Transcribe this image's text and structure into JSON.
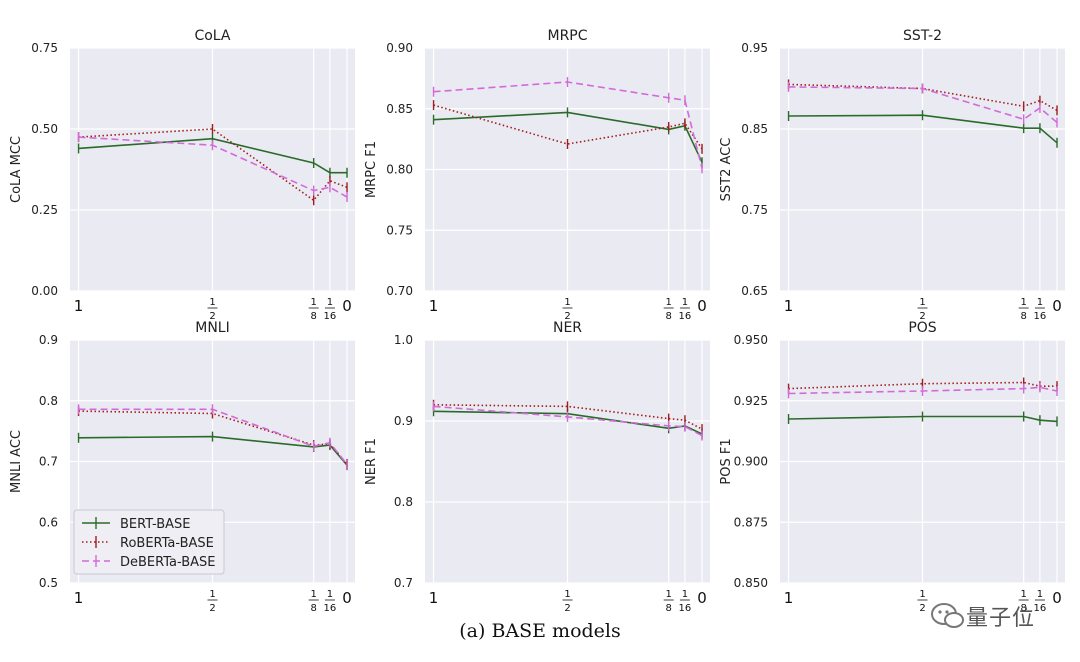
{
  "caption": "(a) BASE models",
  "watermark": "量子位",
  "legend": {
    "items": [
      {
        "label": "BERT-BASE",
        "color": "#2a6b2a",
        "style": "solid"
      },
      {
        "label": "RoBERTa-BASE",
        "color": "#a11d1d",
        "style": "dotted"
      },
      {
        "label": "DeBERTa-BASE",
        "color": "#d36ad8",
        "style": "dashed"
      }
    ]
  },
  "chart_data": [
    {
      "type": "line",
      "title": "CoLA",
      "ylabel": "CoLA MCC",
      "ylim": [
        0.0,
        0.75
      ],
      "yticks": [
        "0.00",
        "0.25",
        "0.50",
        "0.75"
      ],
      "xtick_labels": [
        {
          "x": 1,
          "label": "1"
        },
        {
          "x": 0.5,
          "num": "1",
          "den": "2"
        },
        {
          "x": 0.125,
          "num": "1",
          "den": "8"
        },
        {
          "x": 0.0625,
          "num": "1",
          "den": "16"
        },
        {
          "x": 0,
          "label": "0"
        }
      ],
      "x": [
        1,
        0.5,
        0.125,
        0.0625,
        0
      ],
      "series": [
        {
          "name": "BERT-BASE",
          "values": [
            0.44,
            0.47,
            0.395,
            0.365,
            0.365
          ]
        },
        {
          "name": "RoBERTa-BASE",
          "values": [
            0.475,
            0.5,
            0.28,
            0.34,
            0.32
          ]
        },
        {
          "name": "DeBERTa-BASE",
          "values": [
            0.475,
            0.45,
            0.31,
            0.32,
            0.29
          ]
        }
      ]
    },
    {
      "type": "line",
      "title": "MRPC",
      "ylabel": "MRPC F1",
      "ylim": [
        0.7,
        0.9
      ],
      "yticks": [
        "0.70",
        "0.75",
        "0.80",
        "0.85",
        "0.90"
      ],
      "xtick_labels": [
        {
          "x": 1,
          "label": "1"
        },
        {
          "x": 0.5,
          "num": "1",
          "den": "2"
        },
        {
          "x": 0.125,
          "num": "1",
          "den": "8"
        },
        {
          "x": 0.0625,
          "num": "1",
          "den": "16"
        },
        {
          "x": 0,
          "label": "0"
        }
      ],
      "x": [
        1,
        0.5,
        0.125,
        0.0625,
        0
      ],
      "series": [
        {
          "name": "BERT-BASE",
          "values": [
            0.841,
            0.847,
            0.833,
            0.836,
            0.806
          ]
        },
        {
          "name": "RoBERTa-BASE",
          "values": [
            0.853,
            0.821,
            0.835,
            0.838,
            0.817
          ]
        },
        {
          "name": "DeBERTa-BASE",
          "values": [
            0.864,
            0.872,
            0.859,
            0.857,
            0.801
          ]
        }
      ]
    },
    {
      "type": "line",
      "title": "SST-2",
      "ylabel": "SST2 ACC",
      "ylim": [
        0.65,
        0.95
      ],
      "yticks": [
        "0.65",
        "0.75",
        "0.85",
        "0.95"
      ],
      "xtick_labels": [
        {
          "x": 1,
          "label": "1"
        },
        {
          "x": 0.5,
          "num": "1",
          "den": "2"
        },
        {
          "x": 0.125,
          "num": "1",
          "den": "8"
        },
        {
          "x": 0.0625,
          "num": "1",
          "den": "16"
        },
        {
          "x": 0,
          "label": "0"
        }
      ],
      "x": [
        1,
        0.5,
        0.125,
        0.0625,
        0
      ],
      "series": [
        {
          "name": "BERT-BASE",
          "values": [
            0.866,
            0.867,
            0.851,
            0.851,
            0.833
          ]
        },
        {
          "name": "RoBERTa-BASE",
          "values": [
            0.905,
            0.9,
            0.878,
            0.885,
            0.873
          ]
        },
        {
          "name": "DeBERTa-BASE",
          "values": [
            0.902,
            0.9,
            0.862,
            0.876,
            0.858
          ]
        }
      ]
    },
    {
      "type": "line",
      "title": "MNLI",
      "ylabel": "MNLI ACC",
      "ylim": [
        0.5,
        0.9
      ],
      "yticks": [
        "0.5",
        "0.6",
        "0.7",
        "0.8",
        "0.9"
      ],
      "xtick_labels": [
        {
          "x": 1,
          "label": "1"
        },
        {
          "x": 0.5,
          "num": "1",
          "den": "2"
        },
        {
          "x": 0.125,
          "num": "1",
          "den": "8"
        },
        {
          "x": 0.0625,
          "num": "1",
          "den": "16"
        },
        {
          "x": 0,
          "label": "0"
        }
      ],
      "x": [
        1,
        0.5,
        0.125,
        0.0625,
        0
      ],
      "series": [
        {
          "name": "BERT-BASE",
          "values": [
            0.739,
            0.741,
            0.724,
            0.727,
            0.694
          ]
        },
        {
          "name": "RoBERTa-BASE",
          "values": [
            0.783,
            0.779,
            0.727,
            0.729,
            0.696
          ]
        },
        {
          "name": "DeBERTa-BASE",
          "values": [
            0.786,
            0.786,
            0.725,
            0.731,
            0.695
          ]
        }
      ]
    },
    {
      "type": "line",
      "title": "NER",
      "ylabel": "NER F1",
      "ylim": [
        0.7,
        1.0
      ],
      "yticks": [
        "0.7",
        "0.8",
        "0.9",
        "1.0"
      ],
      "xtick_labels": [
        {
          "x": 1,
          "label": "1"
        },
        {
          "x": 0.5,
          "num": "1",
          "den": "2"
        },
        {
          "x": 0.125,
          "num": "1",
          "den": "8"
        },
        {
          "x": 0.0625,
          "num": "1",
          "den": "16"
        },
        {
          "x": 0,
          "label": "0"
        }
      ],
      "x": [
        1,
        0.5,
        0.125,
        0.0625,
        0
      ],
      "series": [
        {
          "name": "BERT-BASE",
          "values": [
            0.912,
            0.909,
            0.891,
            0.894,
            0.884
          ]
        },
        {
          "name": "RoBERTa-BASE",
          "values": [
            0.92,
            0.918,
            0.903,
            0.901,
            0.89
          ]
        },
        {
          "name": "DeBERTa-BASE",
          "values": [
            0.918,
            0.905,
            0.894,
            0.893,
            0.882
          ]
        }
      ]
    },
    {
      "type": "line",
      "title": "POS",
      "ylabel": "POS F1",
      "ylim": [
        0.85,
        0.95
      ],
      "yticks": [
        "0.850",
        "0.875",
        "0.900",
        "0.925",
        "0.950"
      ],
      "xtick_labels": [
        {
          "x": 1,
          "label": "1"
        },
        {
          "x": 0.5,
          "num": "1",
          "den": "2"
        },
        {
          "x": 0.125,
          "num": "1",
          "den": "8"
        },
        {
          "x": 0.0625,
          "num": "1",
          "den": "16"
        },
        {
          "x": 0,
          "label": "0"
        }
      ],
      "x": [
        1,
        0.5,
        0.125,
        0.0625,
        0
      ],
      "series": [
        {
          "name": "BERT-BASE",
          "values": [
            0.9175,
            0.9185,
            0.9185,
            0.917,
            0.9165
          ]
        },
        {
          "name": "RoBERTa-BASE",
          "values": [
            0.93,
            0.932,
            0.9325,
            0.931,
            0.931
          ]
        },
        {
          "name": "DeBERTa-BASE",
          "values": [
            0.928,
            0.929,
            0.93,
            0.9305,
            0.929
          ]
        }
      ]
    }
  ]
}
